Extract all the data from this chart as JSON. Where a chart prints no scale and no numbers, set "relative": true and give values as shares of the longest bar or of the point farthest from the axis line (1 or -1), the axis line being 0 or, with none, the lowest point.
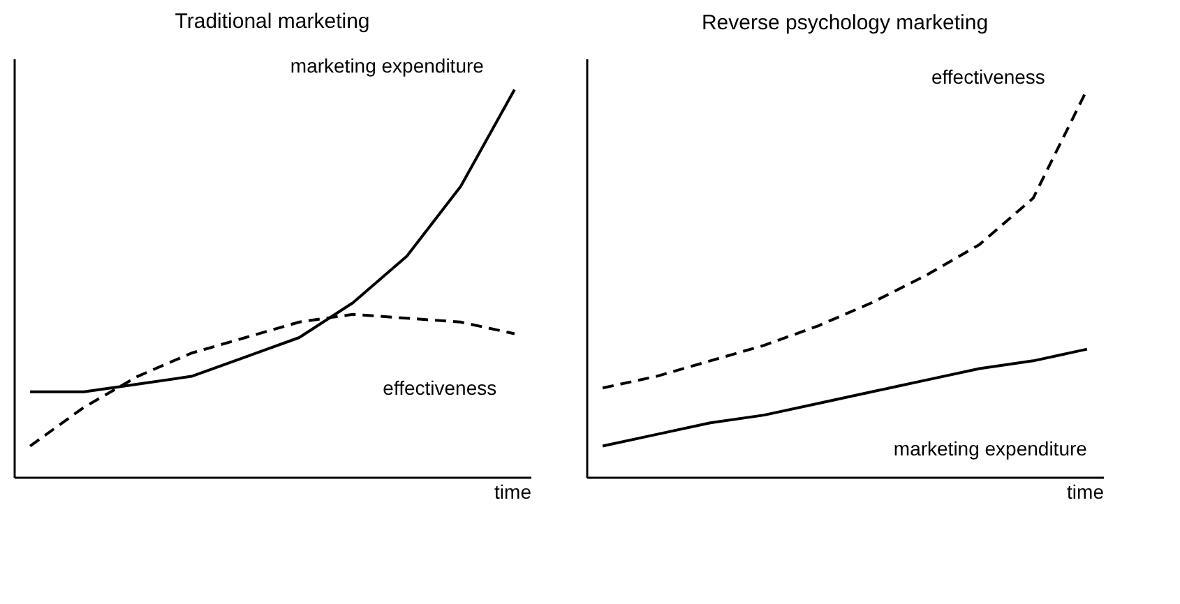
{
  "chart_data": [
    {
      "type": "line",
      "title": "Traditional marketing",
      "xlabel": "time",
      "relative": true,
      "tick_labels": false,
      "categories": [
        null,
        null,
        null,
        null,
        null,
        null,
        null,
        null,
        null,
        null
      ],
      "series": [
        {
          "name": "marketing expenditure",
          "color": "#000000",
          "line_style": "solid",
          "values": [
            0.22,
            0.22,
            0.24,
            0.26,
            0.31,
            0.36,
            0.45,
            0.57,
            0.75,
            1
          ]
        },
        {
          "name": "effectiveness",
          "color": "#000000",
          "line_style": "dashed",
          "values": [
            0.08,
            0.18,
            0.26,
            0.32,
            0.36,
            0.4,
            0.42,
            0.41,
            0.4,
            0.37
          ]
        }
      ]
    },
    {
      "type": "line",
      "title": "Reverse psychology marketing",
      "xlabel": "time",
      "relative": true,
      "tick_labels": false,
      "categories": [
        null,
        null,
        null,
        null,
        null,
        null,
        null,
        null,
        null,
        null
      ],
      "series": [
        {
          "name": "effectiveness",
          "color": "#000000",
          "line_style": "dashed",
          "values": [
            0.23,
            0.26,
            0.3,
            0.34,
            0.39,
            0.45,
            0.52,
            0.6,
            0.72,
            1
          ]
        },
        {
          "name": "marketing expenditure",
          "color": "#000000",
          "line_style": "solid",
          "values": [
            0.08,
            0.11,
            0.14,
            0.16,
            0.19,
            0.22,
            0.25,
            0.28,
            0.3,
            0.33
          ]
        }
      ]
    }
  ]
}
